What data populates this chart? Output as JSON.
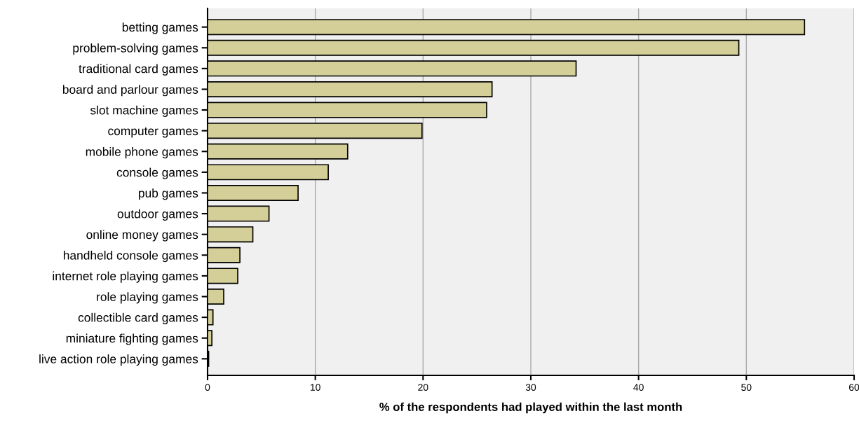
{
  "chart_data": {
    "type": "bar",
    "orientation": "horizontal",
    "xlabel": "% of the respondents had played within the last month",
    "categories": [
      "betting games",
      "problem-solving games",
      "traditional card games",
      "board and parlour games",
      "slot machine games",
      "computer games",
      "mobile phone games",
      "console games",
      "pub games",
      "outdoor games",
      "online money games",
      "handheld console games",
      "internet role playing games",
      "role playing games",
      "collectible card games",
      "miniature fighting games",
      "live action role playing games"
    ],
    "values": [
      55.4,
      49.3,
      34.2,
      26.4,
      25.9,
      19.9,
      13.0,
      11.2,
      8.4,
      5.7,
      4.2,
      3.0,
      2.8,
      1.5,
      0.5,
      0.4,
      0.1
    ],
    "color": "#d4cf98",
    "xlim": [
      0,
      60
    ],
    "xticks": [
      0,
      10,
      20,
      30,
      40,
      50,
      60
    ],
    "grid": "x"
  }
}
